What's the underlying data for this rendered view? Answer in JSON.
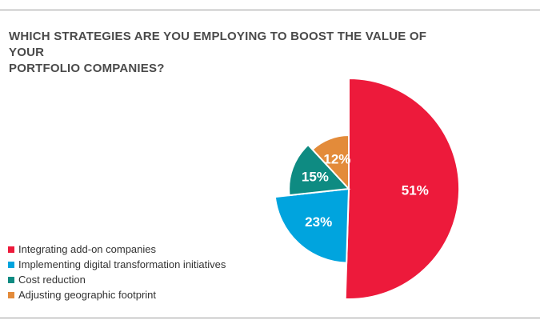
{
  "chart_data": {
    "type": "pie",
    "title_lines": [
      "WHICH STRATEGIES ARE YOU EMPLOYING TO BOOST THE VALUE OF YOUR",
      "PORTFOLIO COMPANIES?"
    ],
    "slices": [
      {
        "label": "Integrating add-on companies",
        "value": 51,
        "display": "51%",
        "color": "#ED1A3B"
      },
      {
        "label": "Implementing digital transformation initiatives",
        "value": 23,
        "display": "23%",
        "color": "#00A4DE"
      },
      {
        "label": "Cost reduction",
        "value": 15,
        "display": "15%",
        "color": "#0E8B82"
      },
      {
        "label": "Adjusting geographic footprint",
        "value": 12,
        "display": "12%",
        "color": "#E38B3A"
      }
    ],
    "legend_position": "bottom-left"
  }
}
